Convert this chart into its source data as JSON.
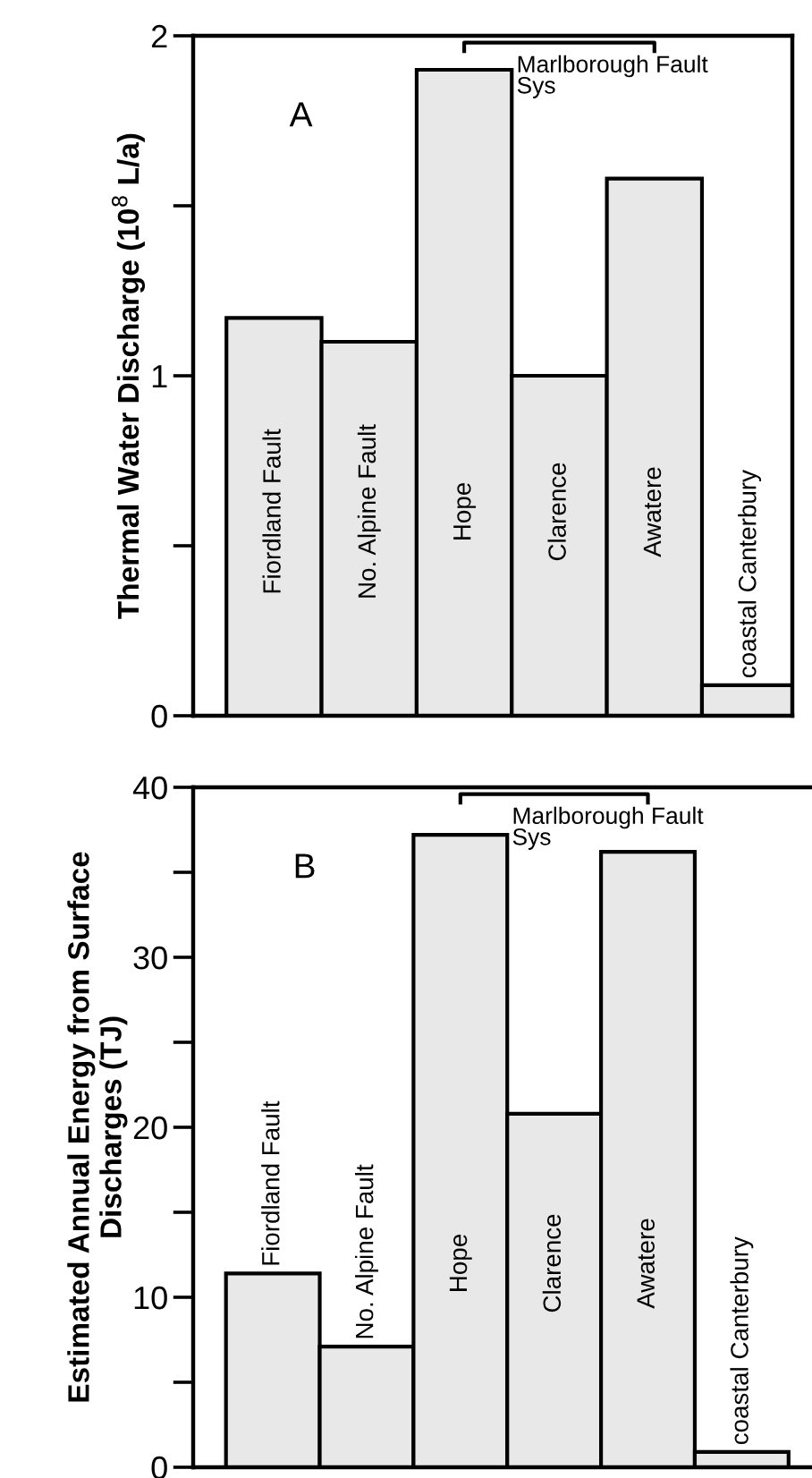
{
  "chart_data": [
    {
      "type": "bar",
      "categories": [
        "Fiordland Fault",
        "No. Alpine Fault",
        "Hope",
        "Clarence",
        "Awatere",
        "coastal Canterbury"
      ],
      "values": [
        1.17,
        1.1,
        1.9,
        1.0,
        1.58,
        0.09
      ],
      "color": "#e8e8e8",
      "ylabel": "Thermal Water Discharge (10$^{8}$ L/a)",
      "ylim": [
        0,
        2
      ],
      "yticks": [
        0,
        {
          "value": 0.5,
          "label": null
        },
        1,
        {
          "value": 1.5,
          "label": null
        },
        2
      ],
      "tick_labels": "y",
      "grid": false,
      "annotations": [
        "A",
        "Marlborough Fault\nSys"
      ]
    },
    {
      "type": "bar",
      "categories": [
        "Fiordland Fault",
        "No. Alpine Fault",
        "Hope",
        "Clarence",
        "Awatere",
        "coastal Canterbury"
      ],
      "values": [
        11.4,
        7.1,
        37.2,
        20.8,
        36.2,
        0.9
      ],
      "color": "#e8e8e8",
      "ylabel": "Estimated Annual Energy from Surface\nDischarges (TJ)",
      "ylim": [
        0,
        40
      ],
      "yticks": [
        0,
        {
          "value": 5,
          "label": null
        },
        10,
        {
          "value": 15,
          "label": null
        },
        20,
        {
          "value": 25,
          "label": null
        },
        30,
        {
          "value": 35,
          "label": null
        },
        40
      ],
      "tick_labels": "y",
      "grid": false,
      "annotations": [
        "B",
        "Marlborough Fault\nSys"
      ]
    }
  ]
}
